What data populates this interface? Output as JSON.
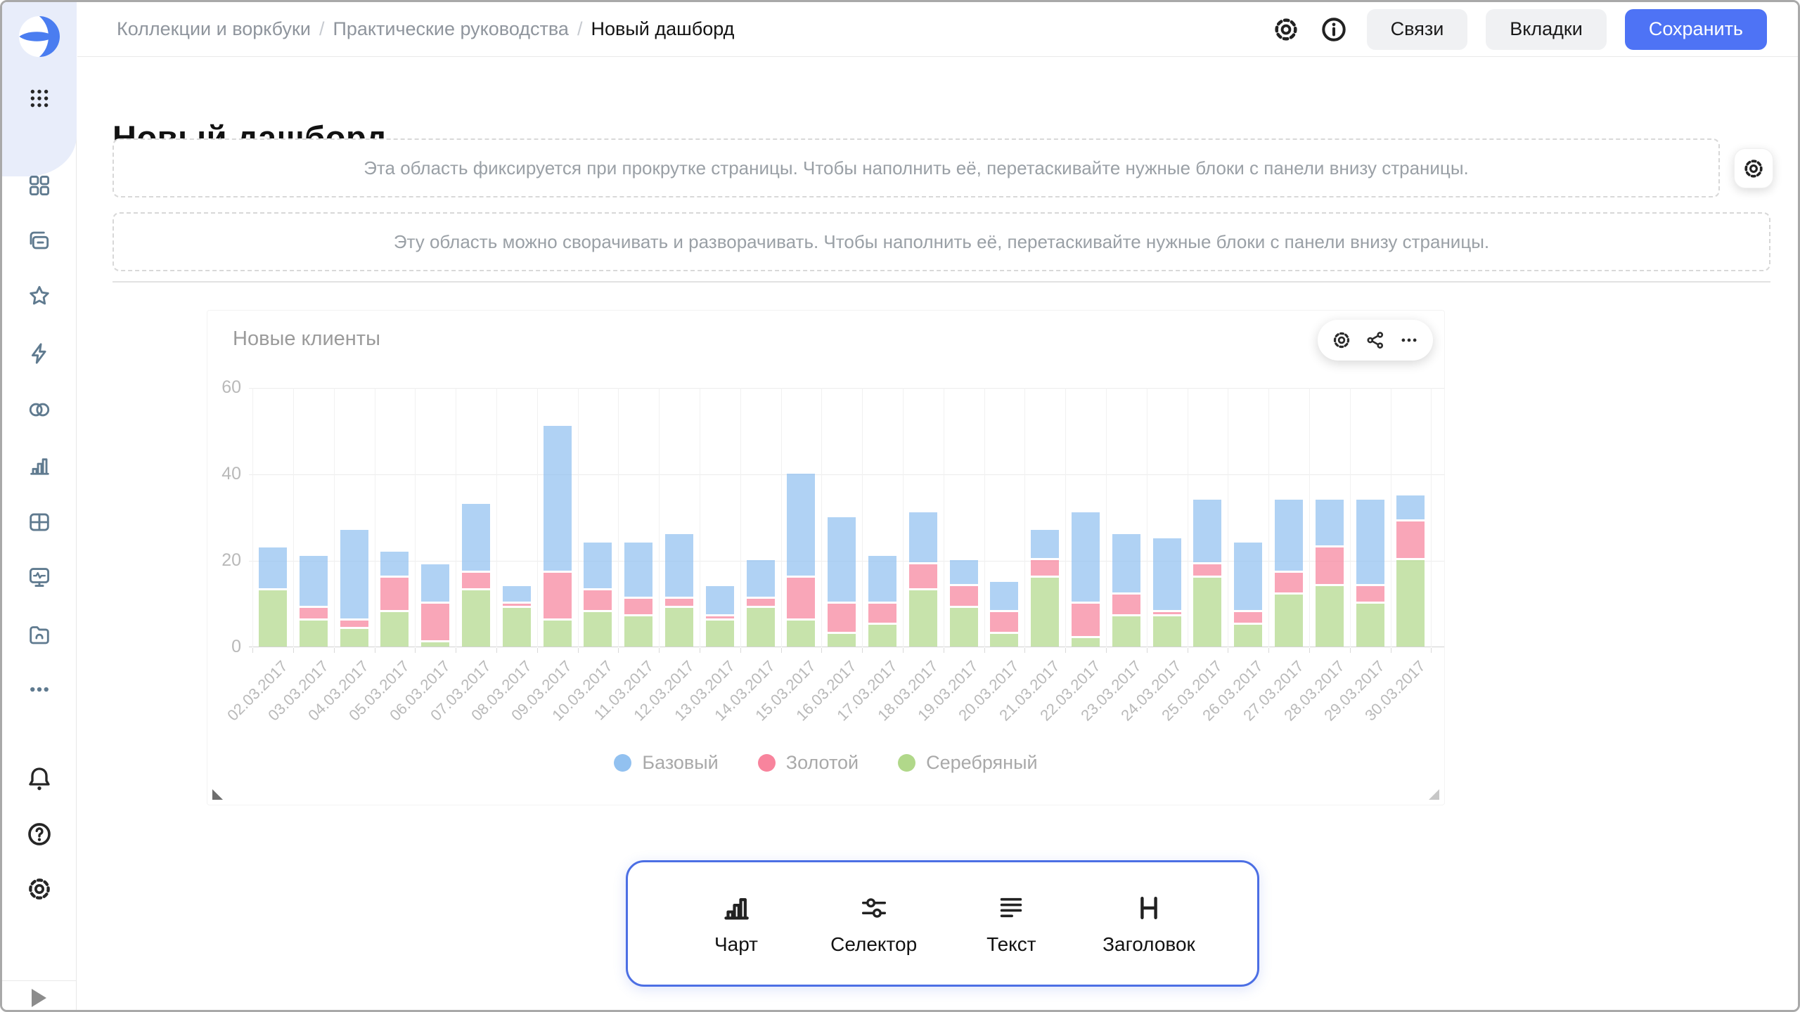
{
  "topbar": {
    "breadcrumbs": [
      "Коллекции и воркбуки",
      "Практические руководства",
      "Новый дашборд"
    ],
    "links_button": "Связи",
    "tabs_button": "Вкладки",
    "save_button": "Сохранить",
    "accent_color": "#4e73f5"
  },
  "page": {
    "title": "Новый дашборд"
  },
  "placeholders": {
    "fixed_area": "Эта область фиксируется при прокрутке страницы. Чтобы наполнить её, перетаскивайте нужные блоки с панели внизу страницы.",
    "collapsible_area": "Эту область можно сворачивать и разворачивать. Чтобы наполнить её, перетаскивайте нужные блоки с панели внизу страницы."
  },
  "sidebar": {
    "nav_icons": [
      "grid-squares",
      "collections",
      "star",
      "lightning",
      "circles-pair",
      "chart-bars",
      "table",
      "monitor",
      "folder-cloud",
      "more-dots"
    ],
    "footer_icons": [
      "bell",
      "question",
      "gear"
    ]
  },
  "widget": {
    "title": "Новые клиенты",
    "toolbar_icons": [
      "gear",
      "share",
      "ellipsis"
    ]
  },
  "bottom_panel": {
    "items": [
      {
        "label": "Чарт",
        "icon": "chart-bars-bold"
      },
      {
        "label": "Селектор",
        "icon": "sliders"
      },
      {
        "label": "Текст",
        "icon": "text-lines"
      },
      {
        "label": "Заголовок",
        "icon": "heading"
      }
    ]
  },
  "chart_data": {
    "type": "bar",
    "stacked": true,
    "title": "Новые клиенты",
    "categories": [
      "02.03.2017",
      "03.03.2017",
      "04.03.2017",
      "05.03.2017",
      "06.03.2017",
      "07.03.2017",
      "08.03.2017",
      "09.03.2017",
      "10.03.2017",
      "11.03.2017",
      "12.03.2017",
      "13.03.2017",
      "14.03.2017",
      "15.03.2017",
      "16.03.2017",
      "17.03.2017",
      "18.03.2017",
      "19.03.2017",
      "20.03.2017",
      "21.03.2017",
      "22.03.2017",
      "23.03.2017",
      "24.03.2017",
      "25.03.2017",
      "26.03.2017",
      "27.03.2017",
      "28.03.2017",
      "29.03.2017",
      "30.03.2017"
    ],
    "series": [
      {
        "name": "Базовый",
        "color": "#92c1f0",
        "values": [
          10,
          12,
          21,
          6,
          9,
          16,
          4,
          34,
          11,
          13,
          15,
          7,
          9,
          24,
          20,
          11,
          12,
          6,
          7,
          7,
          21,
          14,
          17,
          15,
          16,
          17,
          11,
          20,
          6
        ]
      },
      {
        "name": "Золотой",
        "color": "#f8849d",
        "values": [
          0,
          3,
          2,
          8,
          9,
          4,
          1,
          11,
          5,
          4,
          2,
          1,
          2,
          10,
          7,
          5,
          6,
          5,
          5,
          4,
          8,
          5,
          1,
          3,
          3,
          5,
          9,
          4,
          9
        ]
      },
      {
        "name": "Серебряный",
        "color": "#b1d88a",
        "values": [
          13,
          6,
          4,
          8,
          1,
          13,
          9,
          6,
          8,
          7,
          9,
          6,
          9,
          6,
          3,
          5,
          13,
          9,
          3,
          16,
          2,
          7,
          7,
          16,
          5,
          12,
          14,
          10,
          20
        ]
      }
    ],
    "stack_order_bottom_to_top": [
      "Серебряный",
      "Золотой",
      "Базовый"
    ],
    "ylim": [
      0,
      60
    ],
    "yticks": [
      0,
      20,
      40,
      60
    ],
    "xlabel": "",
    "ylabel": "",
    "grid": true,
    "legend_position": "bottom",
    "x_label_rotation": -45
  }
}
